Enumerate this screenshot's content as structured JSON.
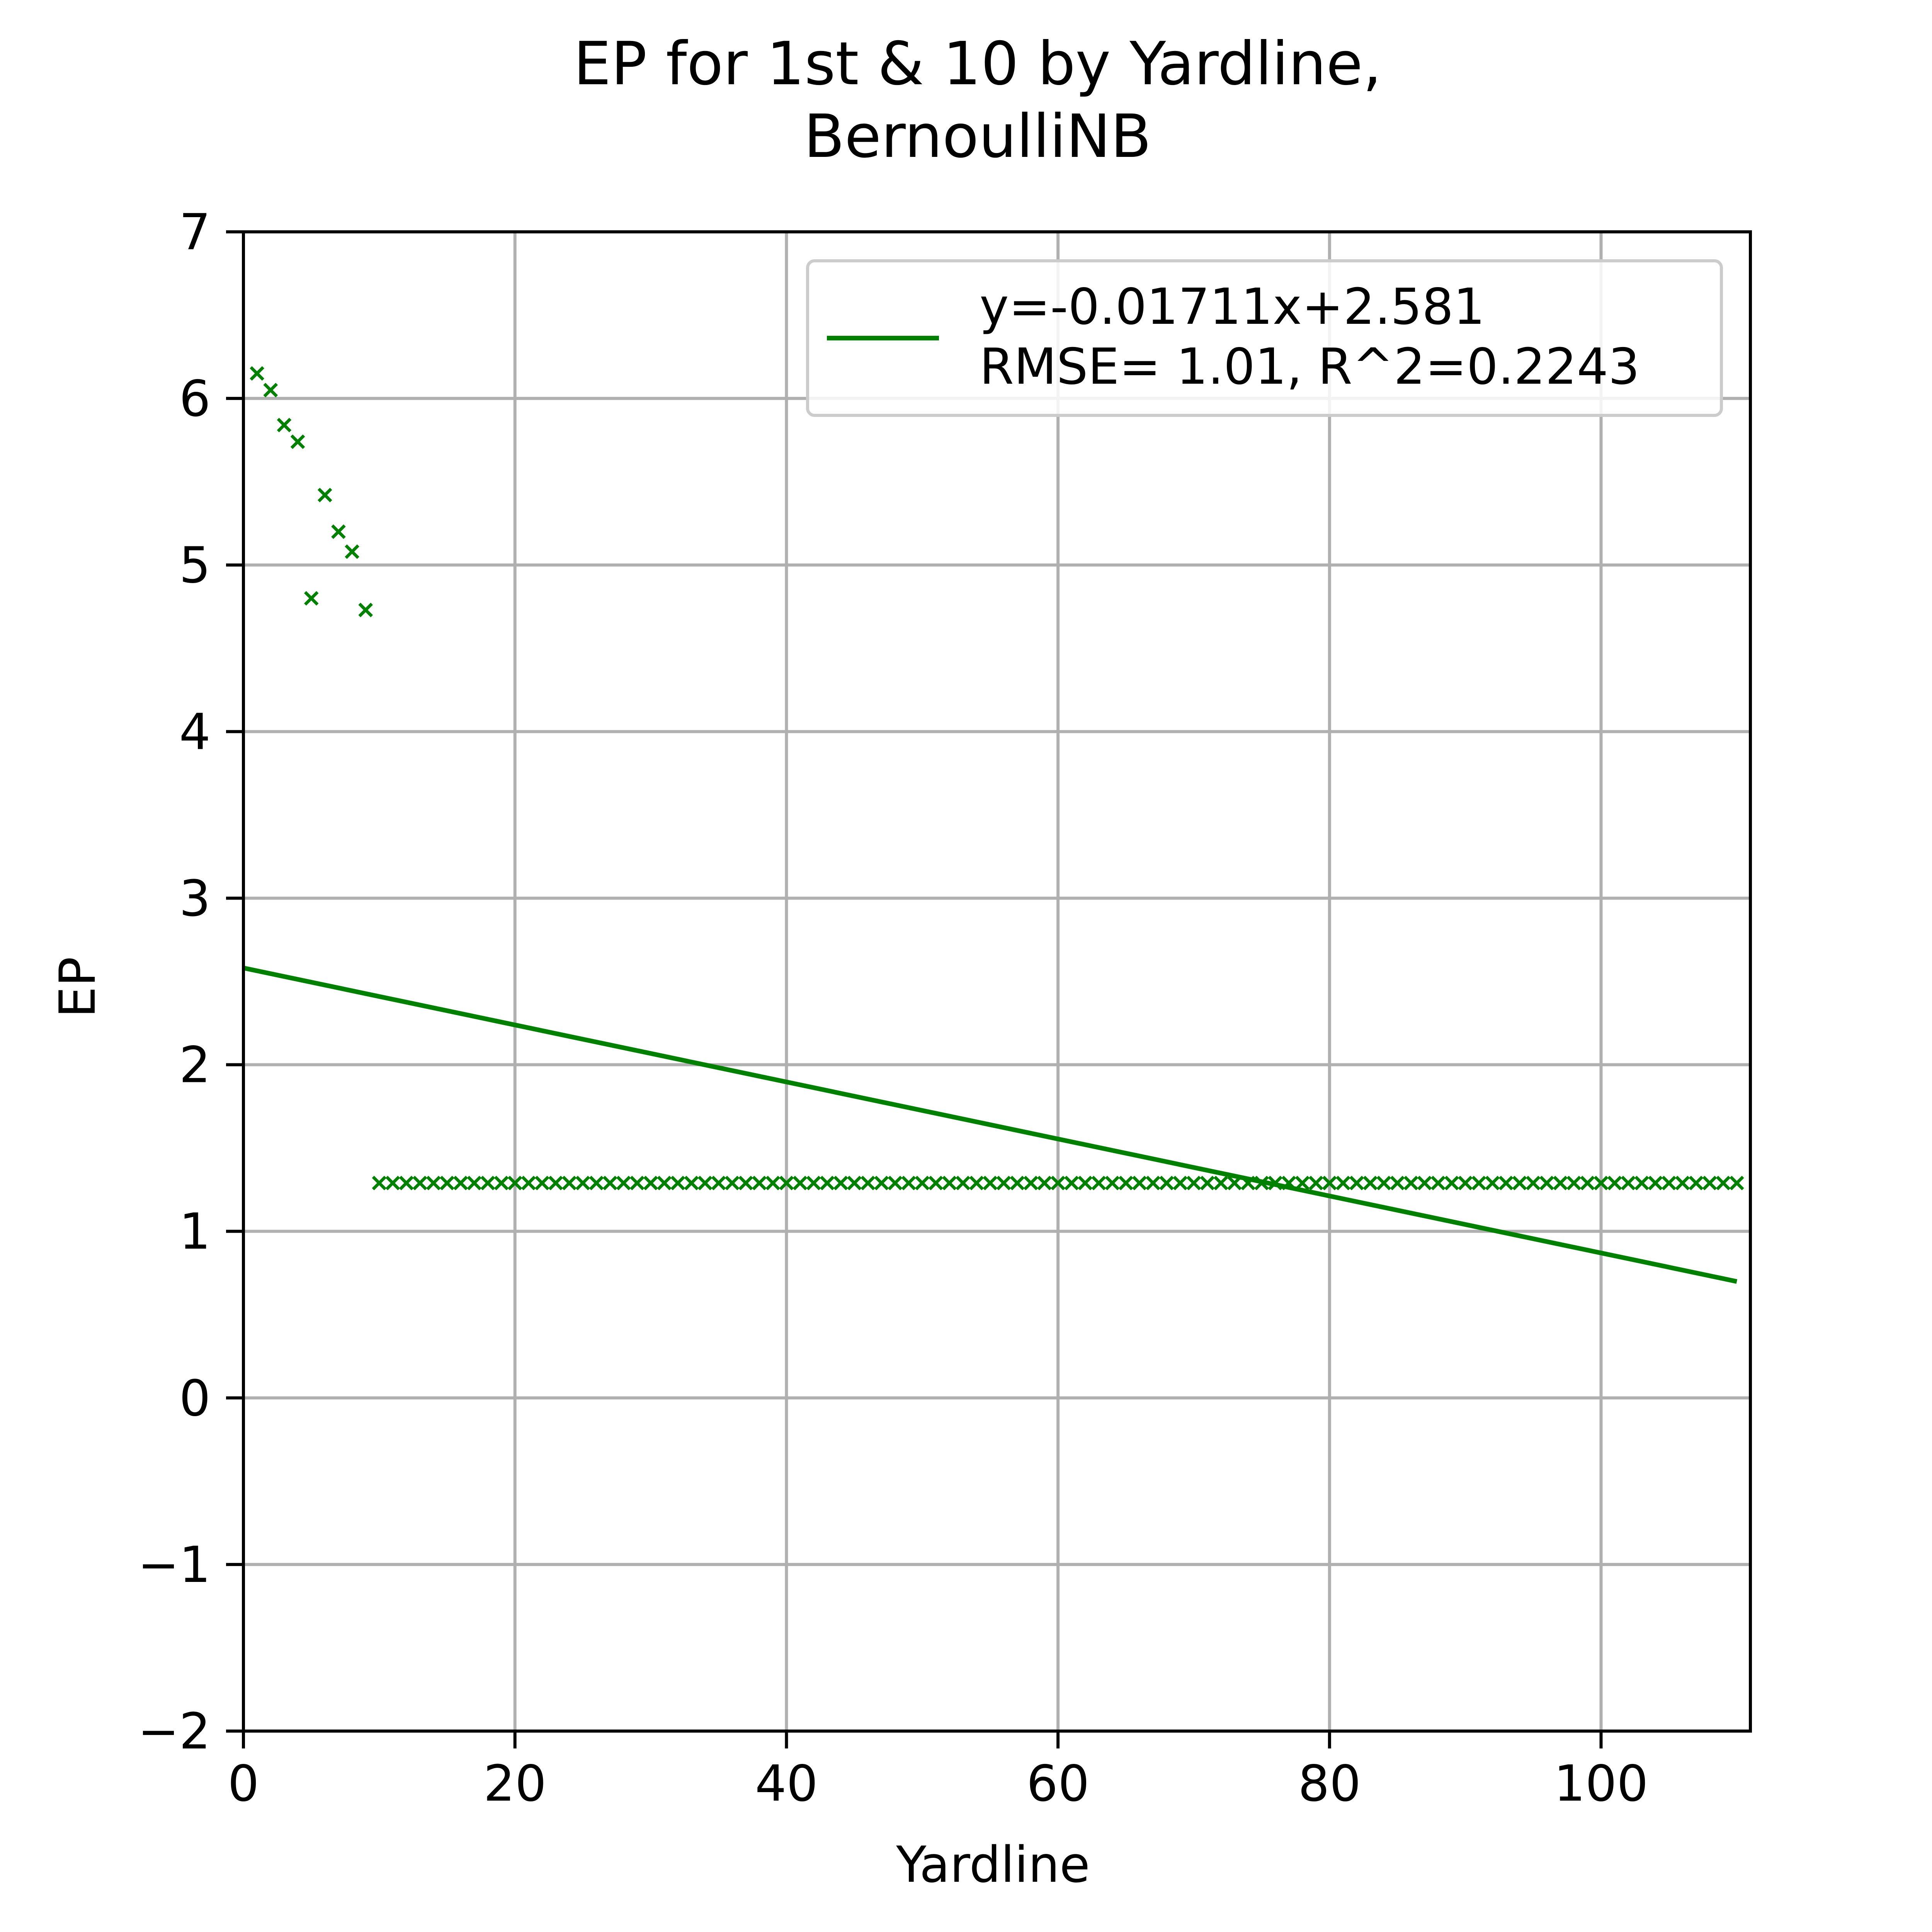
{
  "chart_data": {
    "type": "scatter",
    "title": "EP for 1st & 10 by Yardline,",
    "subtitle": "BernoulliNB",
    "xlabel": "Yardline",
    "ylabel": "EP",
    "xlim": [
      0,
      111
    ],
    "ylim": [
      -2,
      7
    ],
    "xticks": [
      0,
      20,
      40,
      60,
      80,
      100
    ],
    "yticks": [
      -2,
      -1,
      0,
      1,
      2,
      3,
      4,
      5,
      6,
      7
    ],
    "xtick_labels": [
      "0",
      "20",
      "40",
      "60",
      "80",
      "100"
    ],
    "ytick_labels": [
      "−2",
      "−1",
      "0",
      "1",
      "2",
      "3",
      "4",
      "5",
      "6",
      "7"
    ],
    "grid": true,
    "legend_position": "top-right",
    "series": [
      {
        "kind": "scatter",
        "marker": "x",
        "color": "#008000",
        "early_points": {
          "x": [
            1,
            2,
            3,
            4,
            5,
            6,
            7,
            8,
            9
          ],
          "y": [
            6.15,
            6.05,
            5.84,
            5.74,
            4.8,
            5.42,
            5.2,
            5.08,
            4.73
          ]
        },
        "flat_segment": {
          "x_start": 10,
          "x_end": 110,
          "y": 1.29
        }
      },
      {
        "kind": "line",
        "name": "y=-0.01711x+2.581\nRMSE= 1.01, R^2=0.2243",
        "color": "#008000",
        "slope": -0.01711,
        "intercept": 2.581,
        "x_range": [
          0,
          110
        ]
      }
    ],
    "legend": {
      "line1": "y=-0.01711x+2.581",
      "line2": "RMSE= 1.01, R^2=0.2243"
    }
  }
}
